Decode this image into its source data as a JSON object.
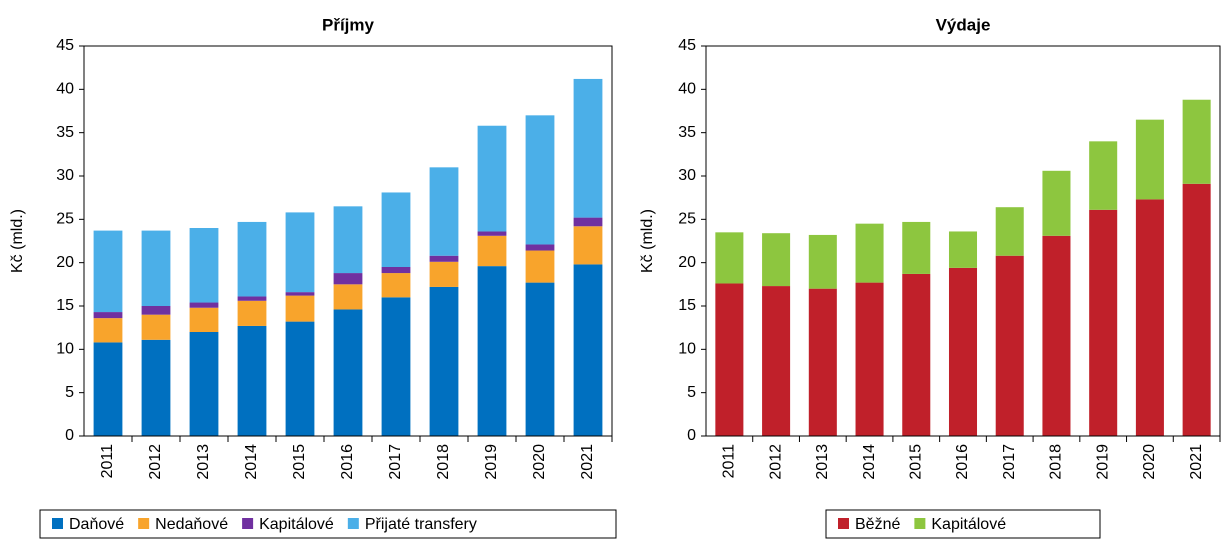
{
  "chart_data": [
    {
      "type": "bar",
      "stacked": true,
      "title": "Příjmy",
      "ylabel": "Kč (mld.)",
      "categories": [
        "2011",
        "2012",
        "2013",
        "2014",
        "2015",
        "2016",
        "2017",
        "2018",
        "2019",
        "2020",
        "2021"
      ],
      "series": [
        {
          "name": "Daňové",
          "color": "#0070c0",
          "values": [
            10.8,
            11.1,
            12.0,
            12.7,
            13.2,
            14.6,
            16.0,
            17.2,
            19.6,
            17.7,
            19.8
          ]
        },
        {
          "name": "Nedaňové",
          "color": "#f8a42c",
          "values": [
            2.8,
            2.9,
            2.8,
            2.9,
            3.0,
            2.9,
            2.8,
            2.9,
            3.5,
            3.7,
            4.4
          ]
        },
        {
          "name": "Kapitálové",
          "color": "#7030a0",
          "values": [
            0.7,
            1.0,
            0.6,
            0.5,
            0.4,
            1.3,
            0.7,
            0.7,
            0.5,
            0.7,
            1.0
          ]
        },
        {
          "name": "Přijaté transfery",
          "color": "#4bafe8",
          "values": [
            9.4,
            8.7,
            8.6,
            8.6,
            9.2,
            7.7,
            8.6,
            10.2,
            12.2,
            14.9,
            16.0
          ]
        }
      ],
      "ylim": [
        0,
        45
      ],
      "yticks": [
        0,
        5,
        10,
        15,
        20,
        25,
        30,
        35,
        40,
        45
      ],
      "legend": "bottom"
    },
    {
      "type": "bar",
      "stacked": true,
      "title": "Výdaje",
      "ylabel": "Kč (mld.)",
      "categories": [
        "2011",
        "2012",
        "2013",
        "2014",
        "2015",
        "2016",
        "2017",
        "2018",
        "2019",
        "2020",
        "2021"
      ],
      "series": [
        {
          "name": "Běžné",
          "color": "#c0202a",
          "values": [
            17.6,
            17.3,
            17.0,
            17.7,
            18.7,
            19.4,
            20.8,
            23.1,
            26.1,
            27.3,
            29.1
          ]
        },
        {
          "name": "Kapitálové",
          "color": "#8dc63f",
          "values": [
            5.9,
            6.1,
            6.2,
            6.8,
            6.0,
            4.2,
            5.6,
            7.5,
            7.9,
            9.2,
            9.7
          ]
        }
      ],
      "ylim": [
        0,
        45
      ],
      "yticks": [
        0,
        5,
        10,
        15,
        20,
        25,
        30,
        35,
        40,
        45
      ],
      "legend": "bottom"
    }
  ]
}
